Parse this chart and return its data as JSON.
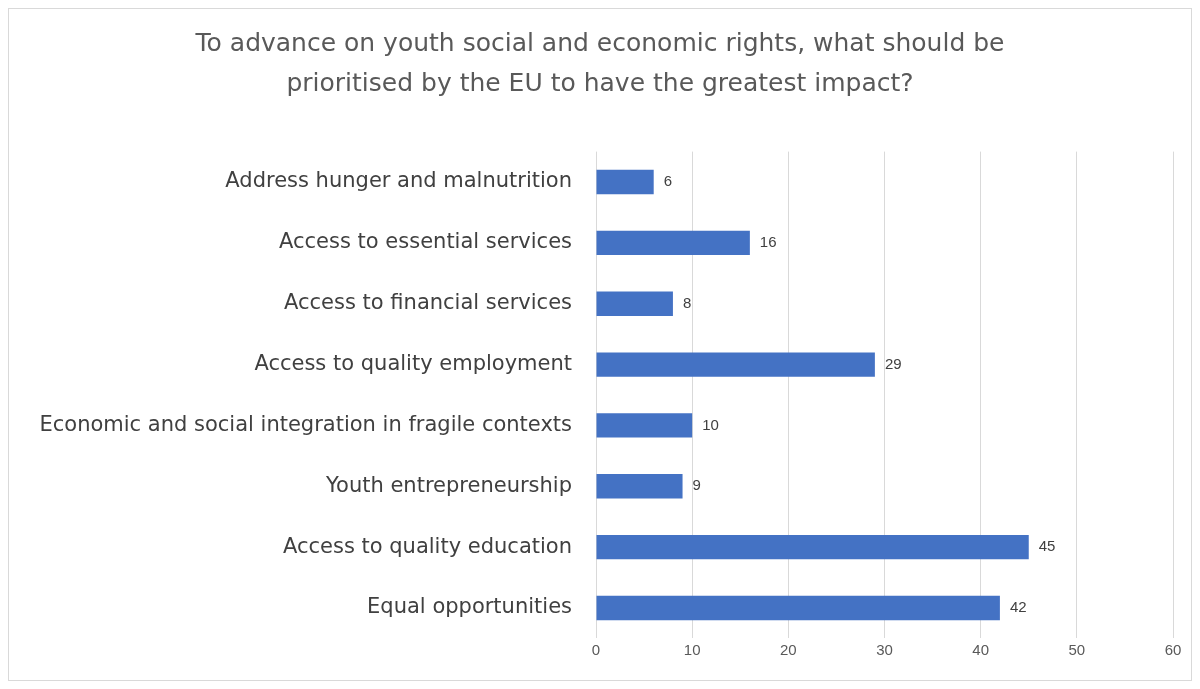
{
  "chart_data": {
    "type": "bar",
    "orientation": "horizontal",
    "title": "To advance on youth social and economic rights, what should be prioritised by the EU to have the greatest impact?",
    "categories": [
      "Address hunger and malnutrition",
      "Access to essential services",
      "Access to financial services",
      "Access to quality employment",
      "Economic and social integration in fragile contexts",
      "Youth entrepreneurship",
      "Access to quality education",
      "Equal opportunities"
    ],
    "values": [
      6,
      16,
      8,
      29,
      10,
      9,
      45,
      42
    ],
    "color": "#4472c4",
    "xlim": [
      0,
      60
    ],
    "xticks": [
      0,
      10,
      20,
      30,
      40,
      50,
      60
    ],
    "grid": "x",
    "data_labels": true,
    "legend": false
  }
}
